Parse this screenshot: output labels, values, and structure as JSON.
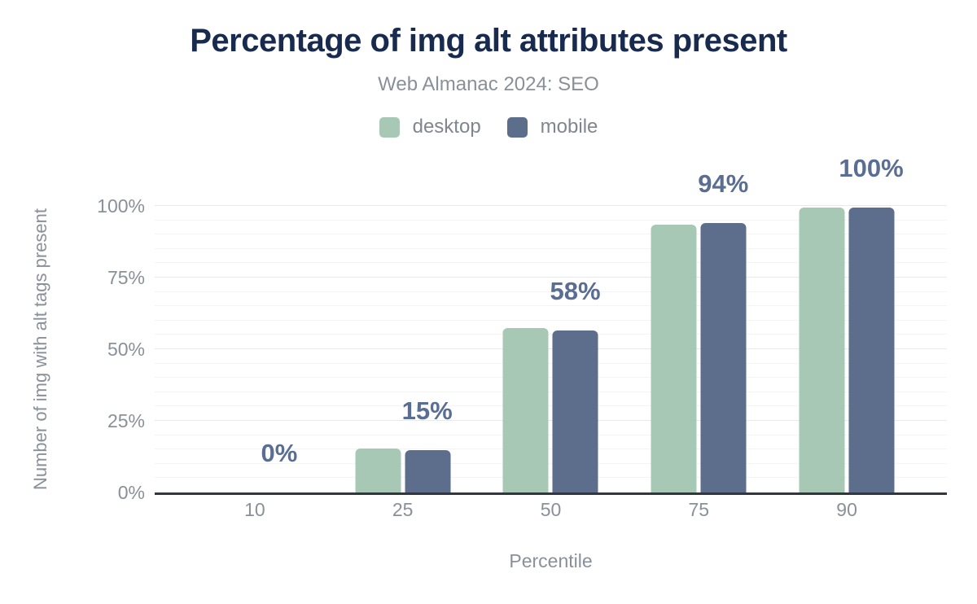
{
  "chart_data": {
    "type": "bar",
    "title": "Percentage of img alt attributes present",
    "subtitle": "Web Almanac 2024: SEO",
    "xlabel": "Percentile",
    "ylabel": "Number of img with alt tags present",
    "categories": [
      "10",
      "25",
      "50",
      "75",
      "90"
    ],
    "series": [
      {
        "name": "desktop",
        "color": "#a7c8b5",
        "values": [
          0,
          15.3,
          57.5,
          93.5,
          99.5
        ]
      },
      {
        "name": "mobile",
        "color": "#5c6e8b",
        "values": [
          0,
          14.7,
          56.6,
          94.0,
          99.3
        ]
      }
    ],
    "data_labels": [
      "0%",
      "15%",
      "58%",
      "94%",
      "100%"
    ],
    "y_ticks": [
      {
        "label": "0%",
        "value": 0
      },
      {
        "label": "25%",
        "value": 25
      },
      {
        "label": "50%",
        "value": 50
      },
      {
        "label": "75%",
        "value": 75
      },
      {
        "label": "100%",
        "value": 100
      }
    ],
    "ylim": [
      0,
      100
    ],
    "grid": {
      "minor_step": 5,
      "major_step": 25,
      "visible": true
    },
    "legend_position": "top",
    "colors": {
      "title": "#182b4f",
      "muted_text": "#8a9099",
      "data_label": "#5a6d93",
      "axis_line": "#32363d"
    }
  }
}
